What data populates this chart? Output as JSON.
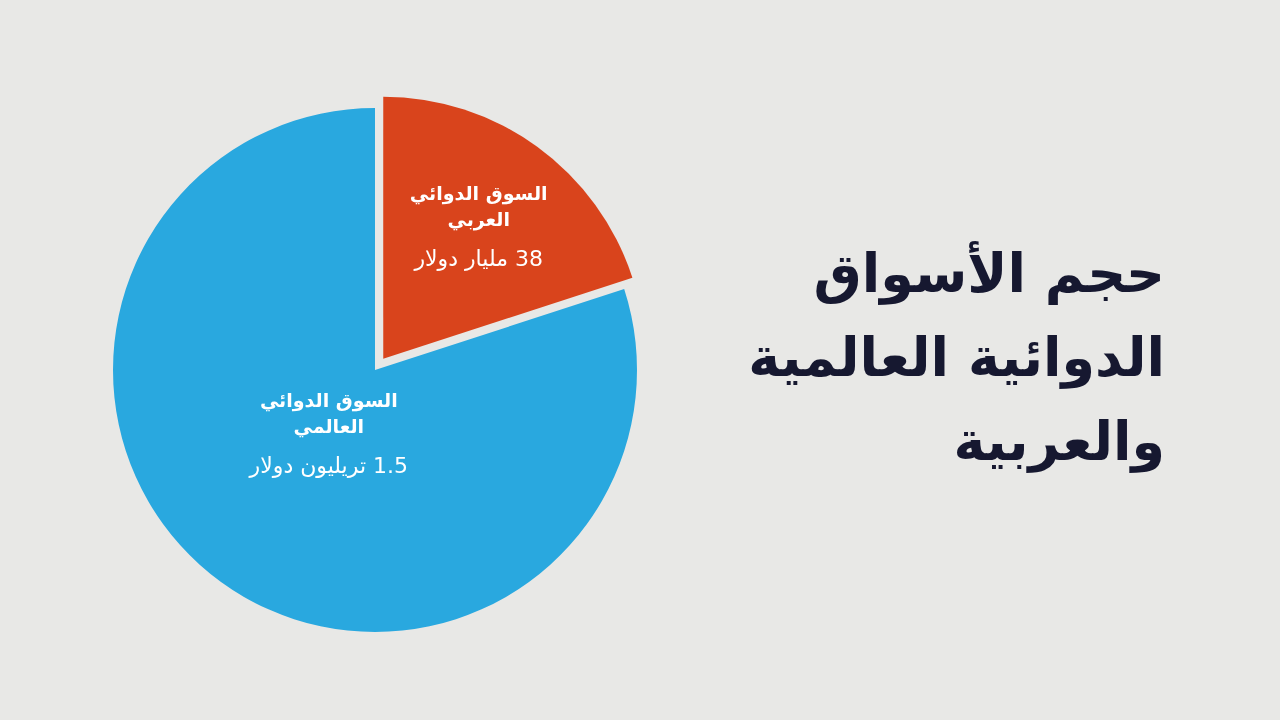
{
  "chart_data": {
    "type": "pie",
    "title": "حجم الأسواق الدوائية العالمية والعربية",
    "categories": [
      "السوق الدوائي العربي",
      "السوق الدوائي العالمي"
    ],
    "values": [
      20,
      80
    ],
    "annotations": [
      "38 مليار دولار",
      "1.5 تريليون دولار"
    ],
    "colors": [
      "#d9441c",
      "#29a8df"
    ]
  }
}
